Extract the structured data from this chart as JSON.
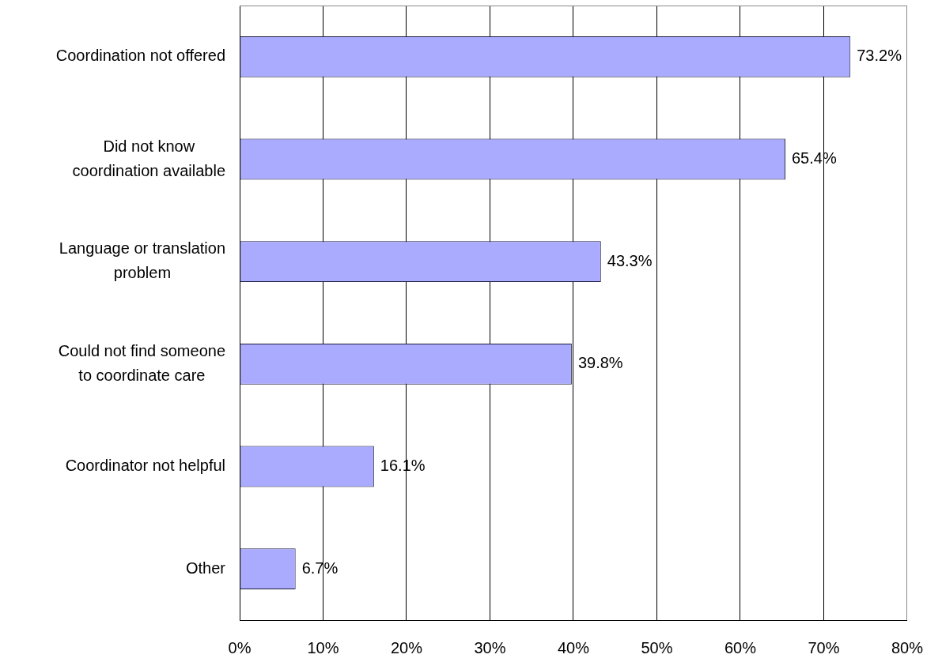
{
  "chart_data": {
    "type": "bar",
    "orientation": "horizontal",
    "categories": [
      "Coordination not offered",
      "Did not know\ncoordination available",
      "Language or translation\nproblem",
      "Could not find someone\nto coordinate care",
      "Coordinator not helpful",
      "Other"
    ],
    "values": [
      73.2,
      65.4,
      43.3,
      39.8,
      16.1,
      6.7
    ],
    "color": "#aaaaff",
    "value_labels": [
      "73.2%",
      "65.4%",
      "43.3%",
      "39.8%",
      "16.1%",
      "6.7%"
    ],
    "xlim": [
      0,
      80
    ],
    "xticks": [
      {
        "value": 0,
        "label": "0%"
      },
      {
        "value": 10,
        "label": "10%"
      },
      {
        "value": 20,
        "label": "20%"
      },
      {
        "value": 30,
        "label": "30%"
      },
      {
        "value": 40,
        "label": "40%"
      },
      {
        "value": 50,
        "label": "50%"
      },
      {
        "value": 60,
        "label": "60%"
      },
      {
        "value": 70,
        "label": "70%"
      },
      {
        "value": 80,
        "label": "80%"
      }
    ],
    "grid": "x"
  }
}
